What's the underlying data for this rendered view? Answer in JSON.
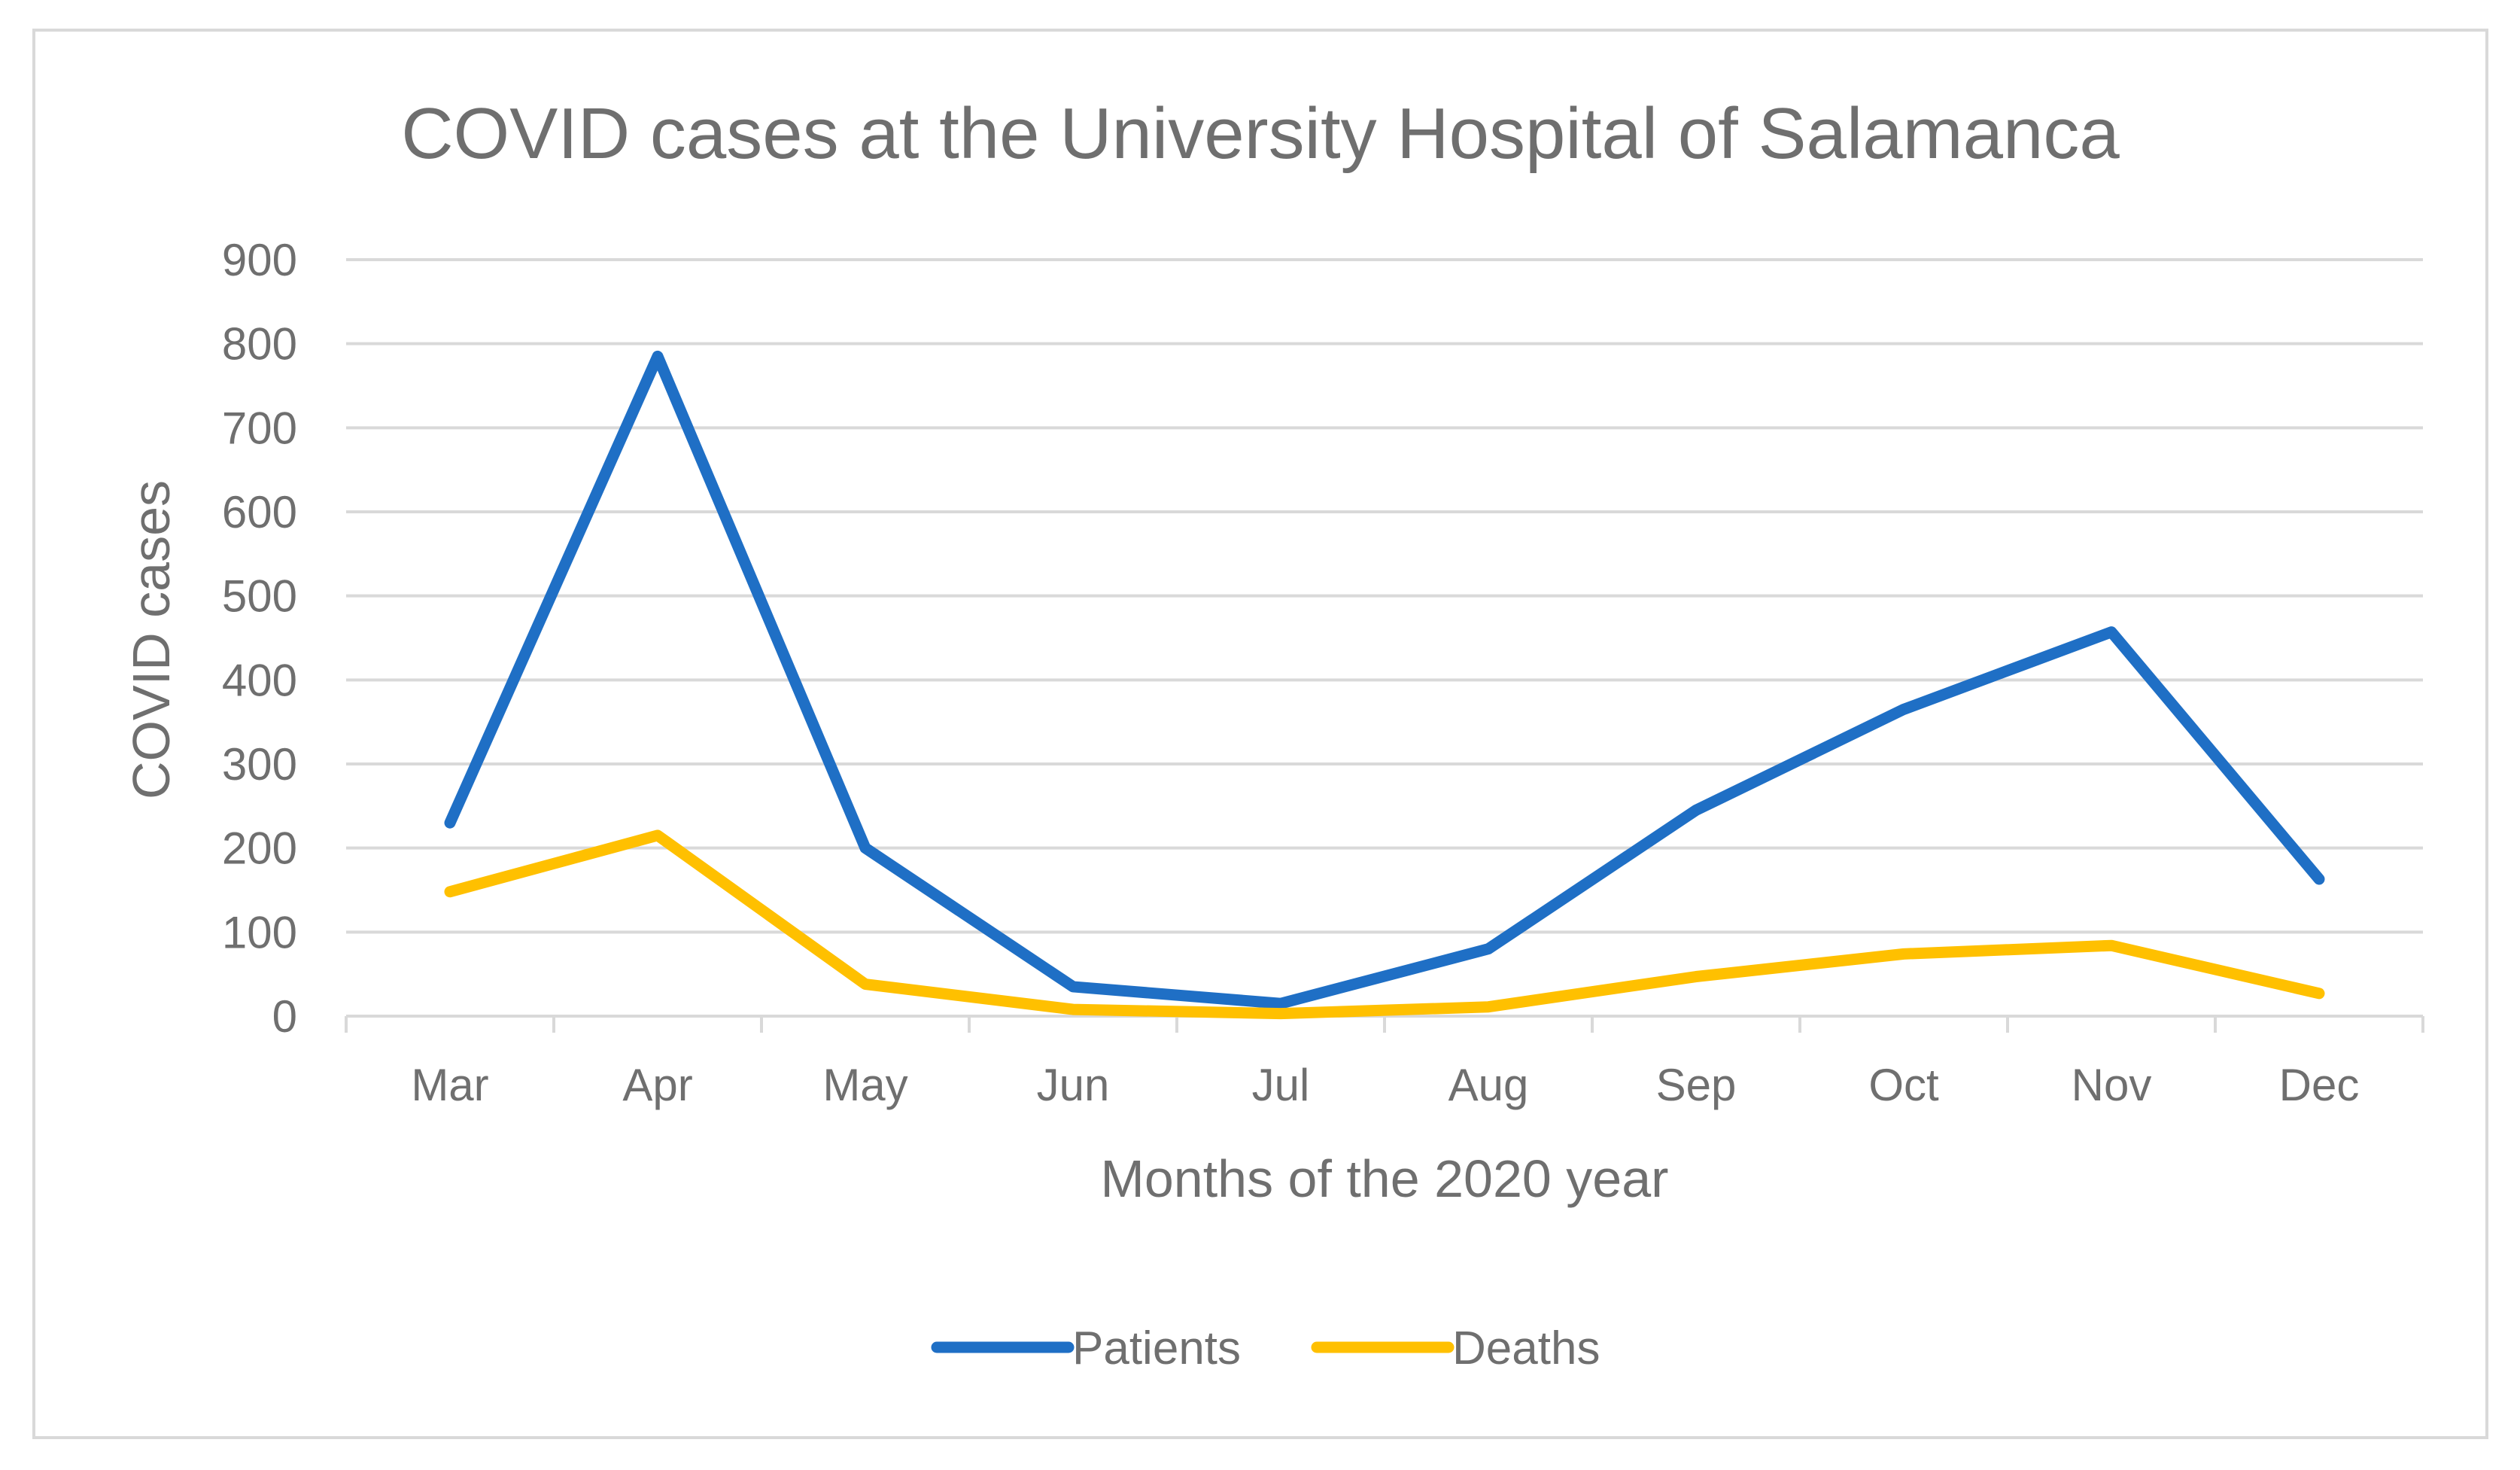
{
  "chart_data": {
    "type": "line",
    "title": "COVID cases at the University Hospital of Salamanca",
    "xlabel": "Months of the 2020 year",
    "ylabel": "COVID cases",
    "categories": [
      "Mar",
      "Apr",
      "May",
      "Jun",
      "Jul",
      "Aug",
      "Sep",
      "Oct",
      "Nov",
      "Dec"
    ],
    "ylim": [
      0,
      900
    ],
    "yticks": [
      0,
      100,
      200,
      300,
      400,
      500,
      600,
      700,
      800,
      900
    ],
    "grid": true,
    "legend_position": "bottom",
    "series": [
      {
        "name": "Patients",
        "color": "#1f6fc5",
        "values": [
          230,
          785,
          200,
          35,
          15,
          80,
          245,
          365,
          457,
          163
        ]
      },
      {
        "name": "Deaths",
        "color": "#ffc000",
        "values": [
          148,
          215,
          38,
          8,
          3,
          11,
          47,
          74,
          84,
          27
        ]
      }
    ]
  }
}
